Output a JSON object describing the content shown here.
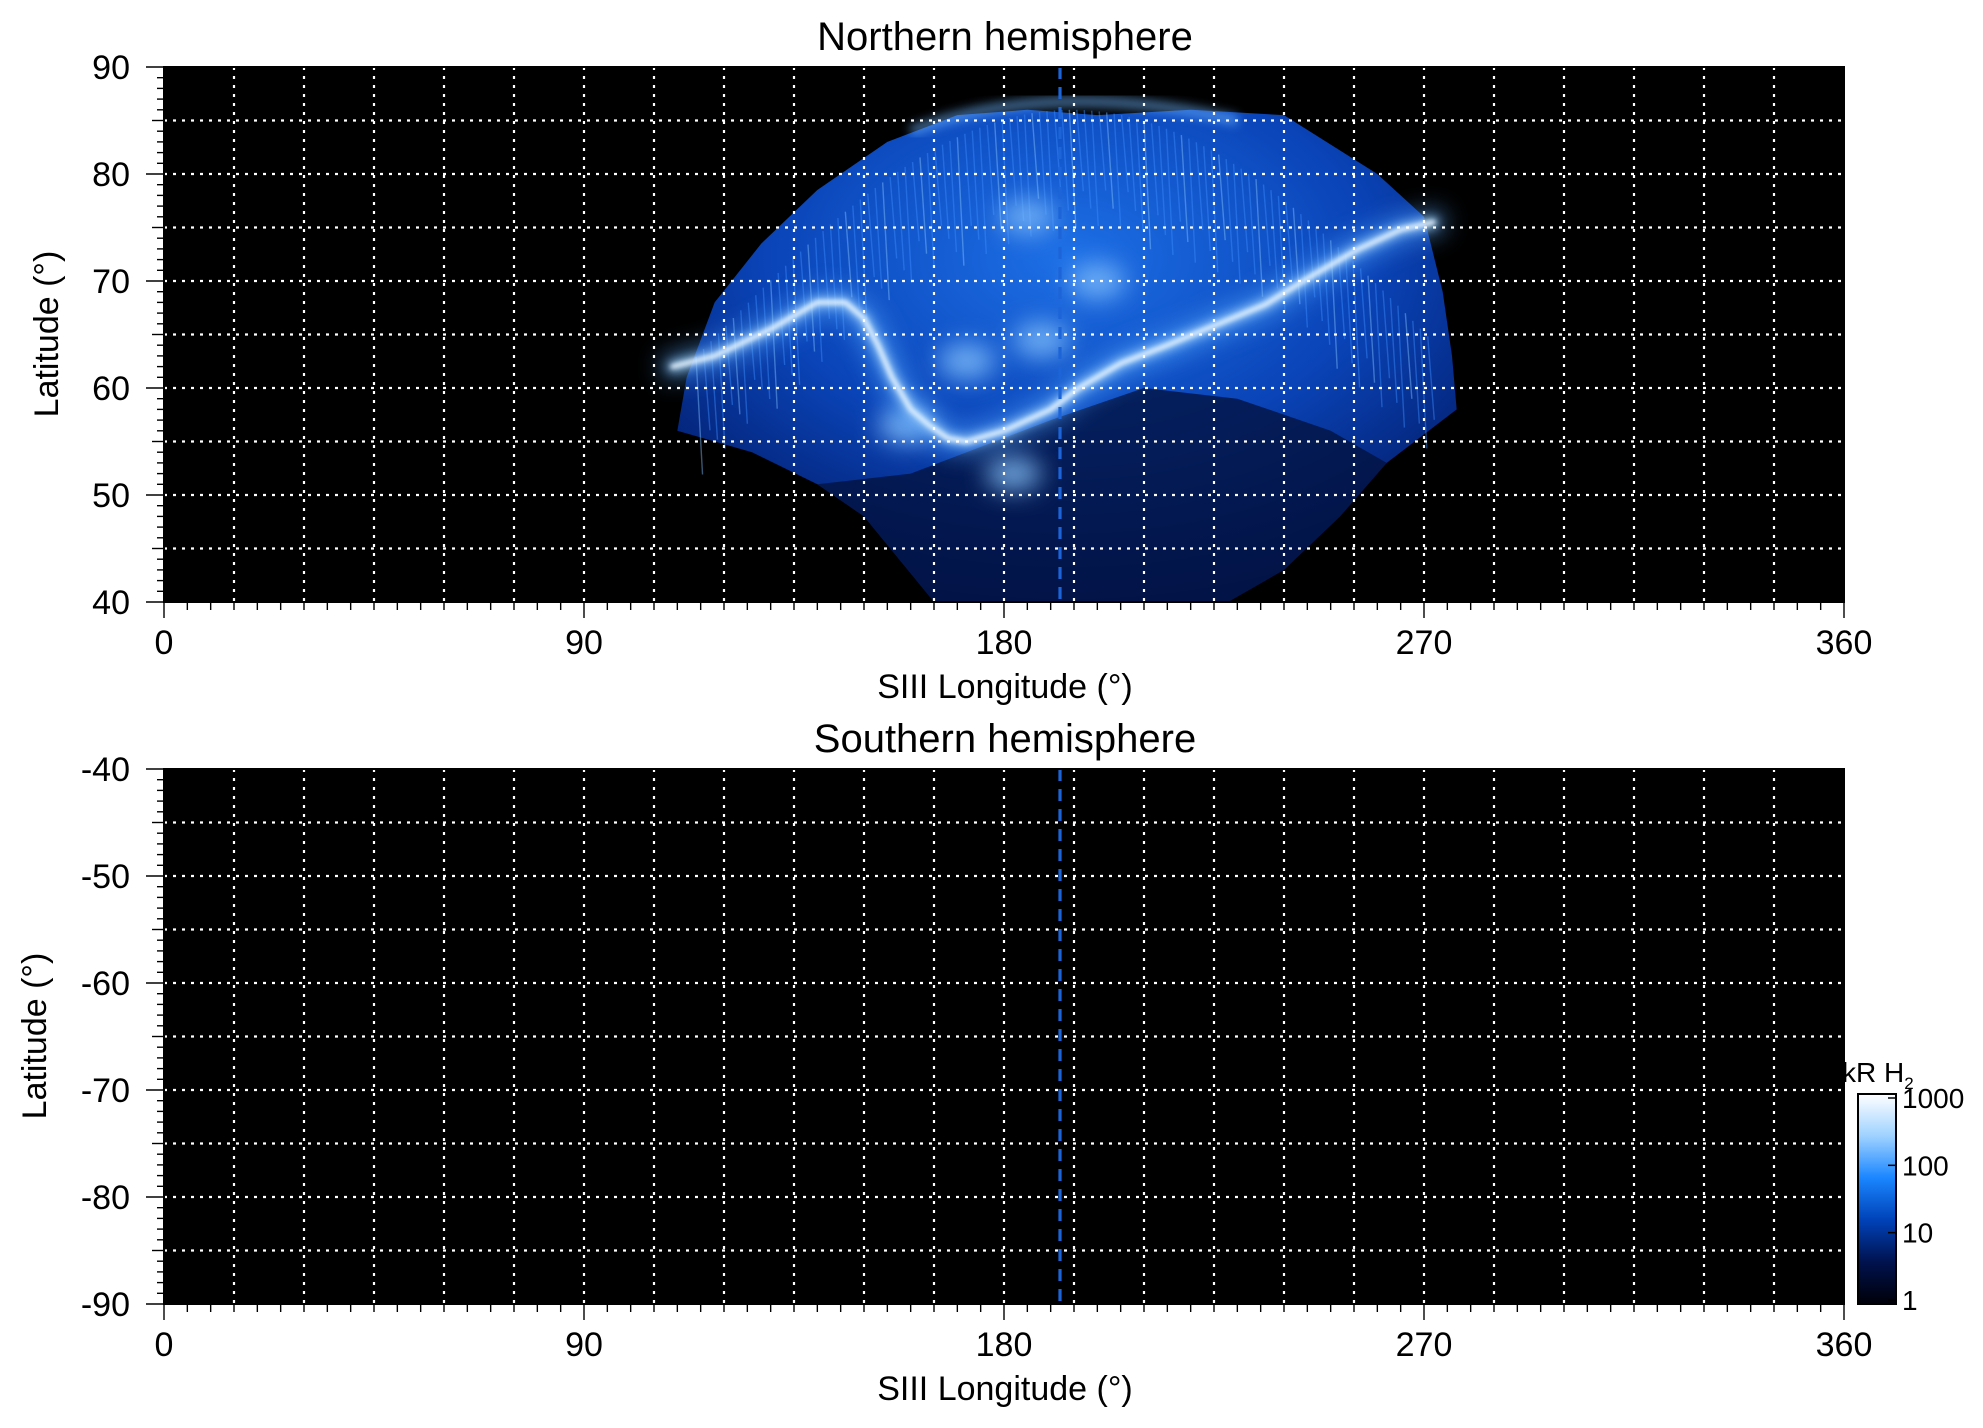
{
  "colorbar": {
    "label_main": "kR H",
    "label_sub": "2",
    "ticks": [
      "1000",
      "100",
      "10",
      "1"
    ],
    "colors": [
      "#000008",
      "#00124e",
      "#0042b8",
      "#1a86ff",
      "#9ed2ff",
      "#ffffff"
    ]
  },
  "chart_data": [
    {
      "type": "heatmap",
      "title": "Northern hemisphere",
      "xlabel": "SIII Longitude (°)",
      "ylabel": "Latitude (°)",
      "xlim": [
        0,
        360
      ],
      "ylim": [
        40,
        90
      ],
      "xticks": [
        "0",
        "90",
        "180",
        "270",
        "360"
      ],
      "yticks": [
        "90",
        "80",
        "70",
        "60",
        "50",
        "40"
      ],
      "grid": true,
      "grid_x_step": 15,
      "grid_y_step": 5,
      "reference_longitude": 192,
      "background_color": "#000000",
      "colorscale": "log",
      "colorscale_range_kR": [
        1,
        1000
      ],
      "main_emission_oval": [
        [
          109,
          62
        ],
        [
          118,
          63
        ],
        [
          130,
          65.5
        ],
        [
          140,
          68
        ],
        [
          146,
          68
        ],
        [
          150,
          66.5
        ],
        [
          153,
          64
        ],
        [
          156,
          61
        ],
        [
          160,
          58
        ],
        [
          164,
          56.5
        ],
        [
          168,
          55.3
        ],
        [
          172,
          55
        ],
        [
          180,
          56
        ],
        [
          185,
          57
        ],
        [
          190,
          58
        ],
        [
          196,
          60
        ],
        [
          205,
          62.3
        ],
        [
          215,
          64
        ],
        [
          226,
          66
        ],
        [
          236,
          67.8
        ],
        [
          246,
          70.5
        ],
        [
          256,
          73
        ],
        [
          265,
          74.8
        ],
        [
          272,
          75.5
        ]
      ],
      "polar_emission_patches": [
        {
          "lon": 172,
          "lat": 62.5,
          "level_kR": 200
        },
        {
          "lon": 188,
          "lat": 64.5,
          "level_kR": 150
        },
        {
          "lon": 200,
          "lat": 70,
          "level_kR": 120
        },
        {
          "lon": 185,
          "lat": 76,
          "level_kR": 90
        },
        {
          "lon": 159,
          "lat": 56.5,
          "level_kR": 300
        },
        {
          "lon": 182,
          "lat": 52,
          "level_kR": 180
        }
      ]
    },
    {
      "type": "heatmap",
      "title": "Southern hemisphere",
      "xlabel": "SIII Longitude (°)",
      "ylabel": "Latitude (°)",
      "xlim": [
        0,
        360
      ],
      "ylim": [
        -90,
        -40
      ],
      "xticks": [
        "0",
        "90",
        "180",
        "270",
        "360"
      ],
      "yticks": [
        "-40",
        "-50",
        "-60",
        "-70",
        "-80",
        "-90"
      ],
      "grid": true,
      "grid_x_step": 15,
      "grid_y_step": 5,
      "reference_longitude": 192,
      "background_color": "#000000",
      "colorscale": "log",
      "colorscale_range_kR": [
        1,
        1000
      ]
    }
  ]
}
